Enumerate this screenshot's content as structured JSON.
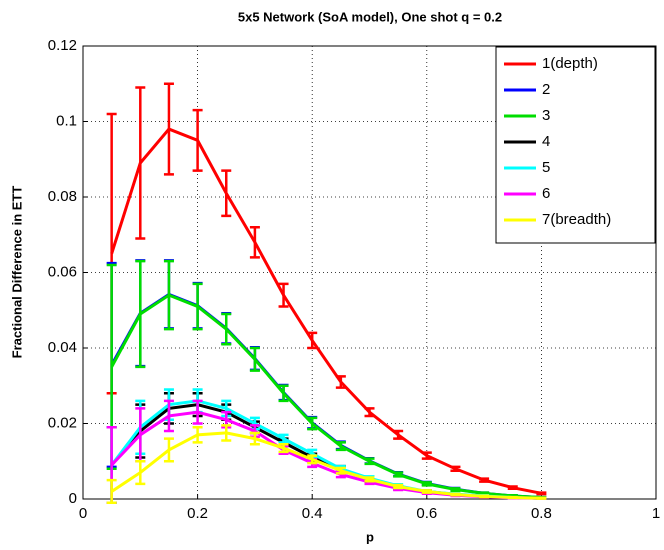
{
  "chart_data": {
    "type": "line",
    "title": "5x5 Network (SoA model), One shot q = 0.2",
    "xlabel": "p",
    "ylabel": "Fractional Difference in ETT",
    "x": [
      0.05,
      0.1,
      0.15,
      0.2,
      0.25,
      0.3,
      0.35,
      0.4,
      0.45,
      0.5,
      0.55,
      0.6,
      0.65,
      0.7,
      0.75,
      0.8
    ],
    "xlim": [
      0,
      1
    ],
    "xticks": [
      0,
      0.2,
      0.4,
      0.6,
      0.8,
      1
    ],
    "ylim": [
      0,
      0.12
    ],
    "yticks": [
      0,
      0.02,
      0.04,
      0.06,
      0.08,
      0.1,
      0.12
    ],
    "grid": true,
    "legend": "upper right",
    "series": [
      {
        "name": "1(depth)",
        "color": "#ff0000",
        "values": [
          0.065,
          0.089,
          0.098,
          0.095,
          0.081,
          0.068,
          0.054,
          0.042,
          0.031,
          0.023,
          0.017,
          0.0115,
          0.008,
          0.005,
          0.003,
          0.0015
        ],
        "errors": [
          0.037,
          0.02,
          0.012,
          0.008,
          0.006,
          0.004,
          0.003,
          0.002,
          0.0015,
          0.001,
          0.001,
          0.0008,
          0.0005,
          0.0004,
          0.0003,
          0.0002
        ]
      },
      {
        "name": "2",
        "color": "#0000ff",
        "values": [
          0.0355,
          0.0492,
          0.0542,
          0.0512,
          0.0452,
          0.0372,
          0.0282,
          0.0202,
          0.0142,
          0.0101,
          0.0066,
          0.0041,
          0.0026,
          0.0015,
          0.0008,
          0.0004
        ],
        "errors": [
          0.027,
          0.014,
          0.009,
          0.006,
          0.004,
          0.003,
          0.002,
          0.0015,
          0.001,
          0.0007,
          0.0005,
          0.0004,
          0.0003,
          0.0002,
          0.0002,
          0.0001
        ]
      },
      {
        "name": "3",
        "color": "#00dd00",
        "values": [
          0.035,
          0.049,
          0.054,
          0.051,
          0.045,
          0.037,
          0.028,
          0.02,
          0.014,
          0.01,
          0.0065,
          0.004,
          0.0025,
          0.0015,
          0.0008,
          0.0004
        ],
        "errors": [
          0.027,
          0.014,
          0.009,
          0.006,
          0.004,
          0.003,
          0.002,
          0.0015,
          0.001,
          0.0007,
          0.0005,
          0.0004,
          0.0003,
          0.0002,
          0.0002,
          0.0001
        ]
      },
      {
        "name": "4",
        "color": "#000000",
        "values": [
          0.009,
          0.018,
          0.024,
          0.025,
          0.023,
          0.019,
          0.015,
          0.011,
          0.008,
          0.005,
          0.003,
          0.002,
          0.0012,
          0.0007,
          0.0004,
          0.0002
        ],
        "errors": [
          0.01,
          0.007,
          0.004,
          0.003,
          0.002,
          0.0015,
          0.001,
          0.001,
          0.0007,
          0.0005,
          0.0004,
          0.0003,
          0.0002,
          0.0002,
          0.0001,
          0.0001
        ]
      },
      {
        "name": "5",
        "color": "#00ffff",
        "values": [
          0.009,
          0.019,
          0.025,
          0.026,
          0.024,
          0.02,
          0.016,
          0.012,
          0.008,
          0.0055,
          0.0035,
          0.002,
          0.0013,
          0.0008,
          0.0004,
          0.0002
        ],
        "errors": [
          0.01,
          0.007,
          0.004,
          0.003,
          0.002,
          0.0015,
          0.001,
          0.001,
          0.0007,
          0.0005,
          0.0004,
          0.0003,
          0.0002,
          0.0002,
          0.0001,
          0.0001
        ]
      },
      {
        "name": "6",
        "color": "#ff00ff",
        "values": [
          0.009,
          0.017,
          0.022,
          0.023,
          0.021,
          0.018,
          0.013,
          0.0095,
          0.0065,
          0.0045,
          0.0028,
          0.0017,
          0.001,
          0.0006,
          0.0003,
          0.0002
        ],
        "errors": [
          0.01,
          0.007,
          0.004,
          0.003,
          0.002,
          0.0015,
          0.001,
          0.001,
          0.0007,
          0.0005,
          0.0004,
          0.0003,
          0.0002,
          0.0002,
          0.0001,
          0.0001
        ]
      },
      {
        "name": "7(breadth)",
        "color": "#ffff00",
        "values": [
          0.002,
          0.007,
          0.013,
          0.017,
          0.0175,
          0.016,
          0.0135,
          0.0105,
          0.0075,
          0.0052,
          0.0033,
          0.002,
          0.0012,
          0.0007,
          0.0004,
          0.0002
        ],
        "errors": [
          0.003,
          0.003,
          0.003,
          0.002,
          0.002,
          0.0015,
          0.001,
          0.001,
          0.0007,
          0.0005,
          0.0004,
          0.0003,
          0.0002,
          0.0002,
          0.0001,
          0.0001
        ]
      }
    ]
  }
}
